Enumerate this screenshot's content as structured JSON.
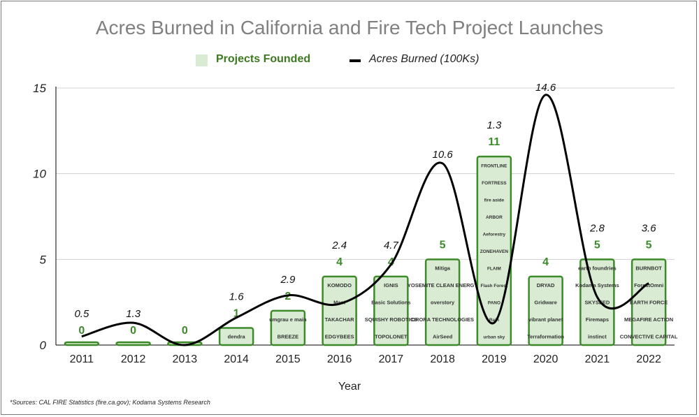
{
  "colors": {
    "bar_fill": "#d9ecd3",
    "bar_stroke": "#3d8a2a",
    "count_label": "#3d8a2a",
    "line": "#000000",
    "grid": "#d0d0d0",
    "title": "#808080"
  },
  "chart_data": {
    "type": "bar",
    "title": "Acres Burned in California and Fire Tech Project Launches",
    "xlabel": "Year",
    "ylabel": "",
    "ylim": [
      0,
      15
    ],
    "yticks": [
      "0",
      "5",
      "10",
      "15"
    ],
    "categories": [
      "2011",
      "2012",
      "2013",
      "2014",
      "2015",
      "2016",
      "2017",
      "2018",
      "2019",
      "2020",
      "2021",
      "2022"
    ],
    "series": [
      {
        "name": "Projects Founded",
        "kind": "bar",
        "values": [
          0,
          0,
          0,
          1,
          2,
          4,
          4,
          5,
          11,
          4,
          5,
          5
        ],
        "labels": [
          "0",
          "0",
          "0",
          "1",
          "2",
          "4",
          "4",
          "5",
          "11",
          "4",
          "5",
          "5"
        ]
      },
      {
        "name": "Acres Burned (100Ks)",
        "kind": "line",
        "values": [
          0.5,
          1.3,
          0.0,
          1.6,
          2.9,
          2.4,
          4.7,
          10.6,
          1.3,
          14.6,
          2.8,
          3.6
        ],
        "labels": [
          "0.5",
          "1.3",
          "",
          "1.6",
          "2.9",
          "2.4",
          "4.7",
          "10.6",
          "1.3",
          "14.6",
          "2.8",
          "3.6"
        ]
      }
    ],
    "project_logos": {
      "2014": [
        "dendra"
      ],
      "2015": [
        "umgrau e main",
        "BREEZE"
      ],
      "2016": [
        "KOMODO",
        "Mast",
        "TAKACHAR",
        "EDGYBEES"
      ],
      "2017": [
        "IGNIS",
        "Basic Solutions",
        "SQUISHY ROBOTICS",
        "TOPOLONET"
      ],
      "2018": [
        "Mitiga",
        "YOSEMITE CLEAN ENERGY",
        "overstory",
        "ORORA TECHNOLOGIES",
        "AirSeed"
      ],
      "2019": [
        "FRONTLINE",
        "FORTRESS",
        "fire aside",
        "ARBOR",
        "Aeforestry",
        "ZONEHAVEN",
        "FLAIM",
        "Flash Forest",
        "PANO",
        "Rain",
        "urban sky"
      ],
      "2020": [
        "DRYAD",
        "Gridware",
        "vibrant planet",
        "Terraformation"
      ],
      "2021": [
        "earth foundries",
        "Kodama Systems",
        "SKYSEED",
        "Firemaps",
        "instinct"
      ],
      "2022": [
        "BURNBOT",
        "ForestOmni",
        "EARTH FORCE",
        "MEGAFIRE ACTION",
        "CONVECTIVE CAPITAL"
      ]
    }
  },
  "legend": {
    "projects_label": "Projects Founded",
    "acres_label": "Acres Burned (100Ks)"
  },
  "footnote": "*Sources: CAL FIRE Statistics (fire.ca.gov); Kodama Systems Research"
}
